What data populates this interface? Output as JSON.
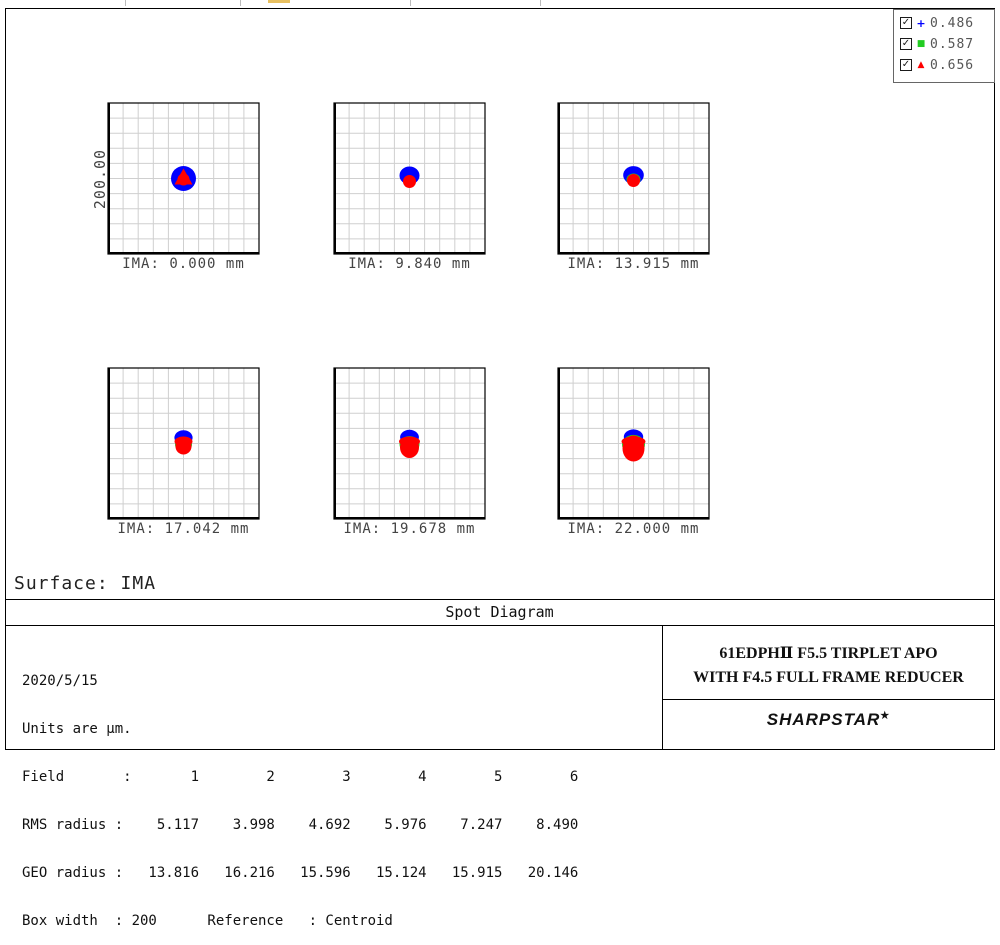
{
  "chart_data": {
    "type": "scatter",
    "diagram_kind": "Spot Diagram",
    "box_width": 200,
    "scale_label": "200.00",
    "colors": {
      "blue": "#0000ff",
      "green": "#22cc22",
      "red": "#ff0000"
    },
    "legend": [
      {
        "marker": "+",
        "color": "#0000ff",
        "label": "0.486"
      },
      {
        "marker": "■",
        "color": "#22cc22",
        "label": "0.587"
      },
      {
        "marker": "▲",
        "color": "#ff0000",
        "label": "0.656"
      }
    ],
    "fields": [
      {
        "label": "IMA: 0.000 mm",
        "rms": 5.117,
        "geo": 13.816
      },
      {
        "label": "IMA: 9.840 mm",
        "rms": 3.998,
        "geo": 16.216
      },
      {
        "label": "IMA: 13.915 mm",
        "rms": 4.692,
        "geo": 15.596
      },
      {
        "label": "IMA: 17.042 mm",
        "rms": 5.976,
        "geo": 15.124
      },
      {
        "label": "IMA: 19.678 mm",
        "rms": 7.247,
        "geo": 15.915
      },
      {
        "label": "IMA: 22.000 mm",
        "rms": 8.49,
        "geo": 20.146
      }
    ]
  },
  "surface_label": "Surface: IMA",
  "panel_title": "Spot Diagram",
  "info_lines": [
    "2020/5/15",
    "Units are µm.",
    "Field       :       1        2        3        4        5        6",
    "RMS radius :    5.117    3.998    4.692    5.976    7.247    8.490",
    "GEO radius :   13.816   16.216   15.596   15.124   15.915   20.146",
    "Box width  : 200      Reference   : Centroid"
  ],
  "design_title_line1": "61EDPHⅡ F5.5 TIRPLET APO",
  "design_title_line2": "WITH F4.5 FULL FRAME REDUCER",
  "brand": "SHARPSTAR",
  "brand_mark": "★"
}
